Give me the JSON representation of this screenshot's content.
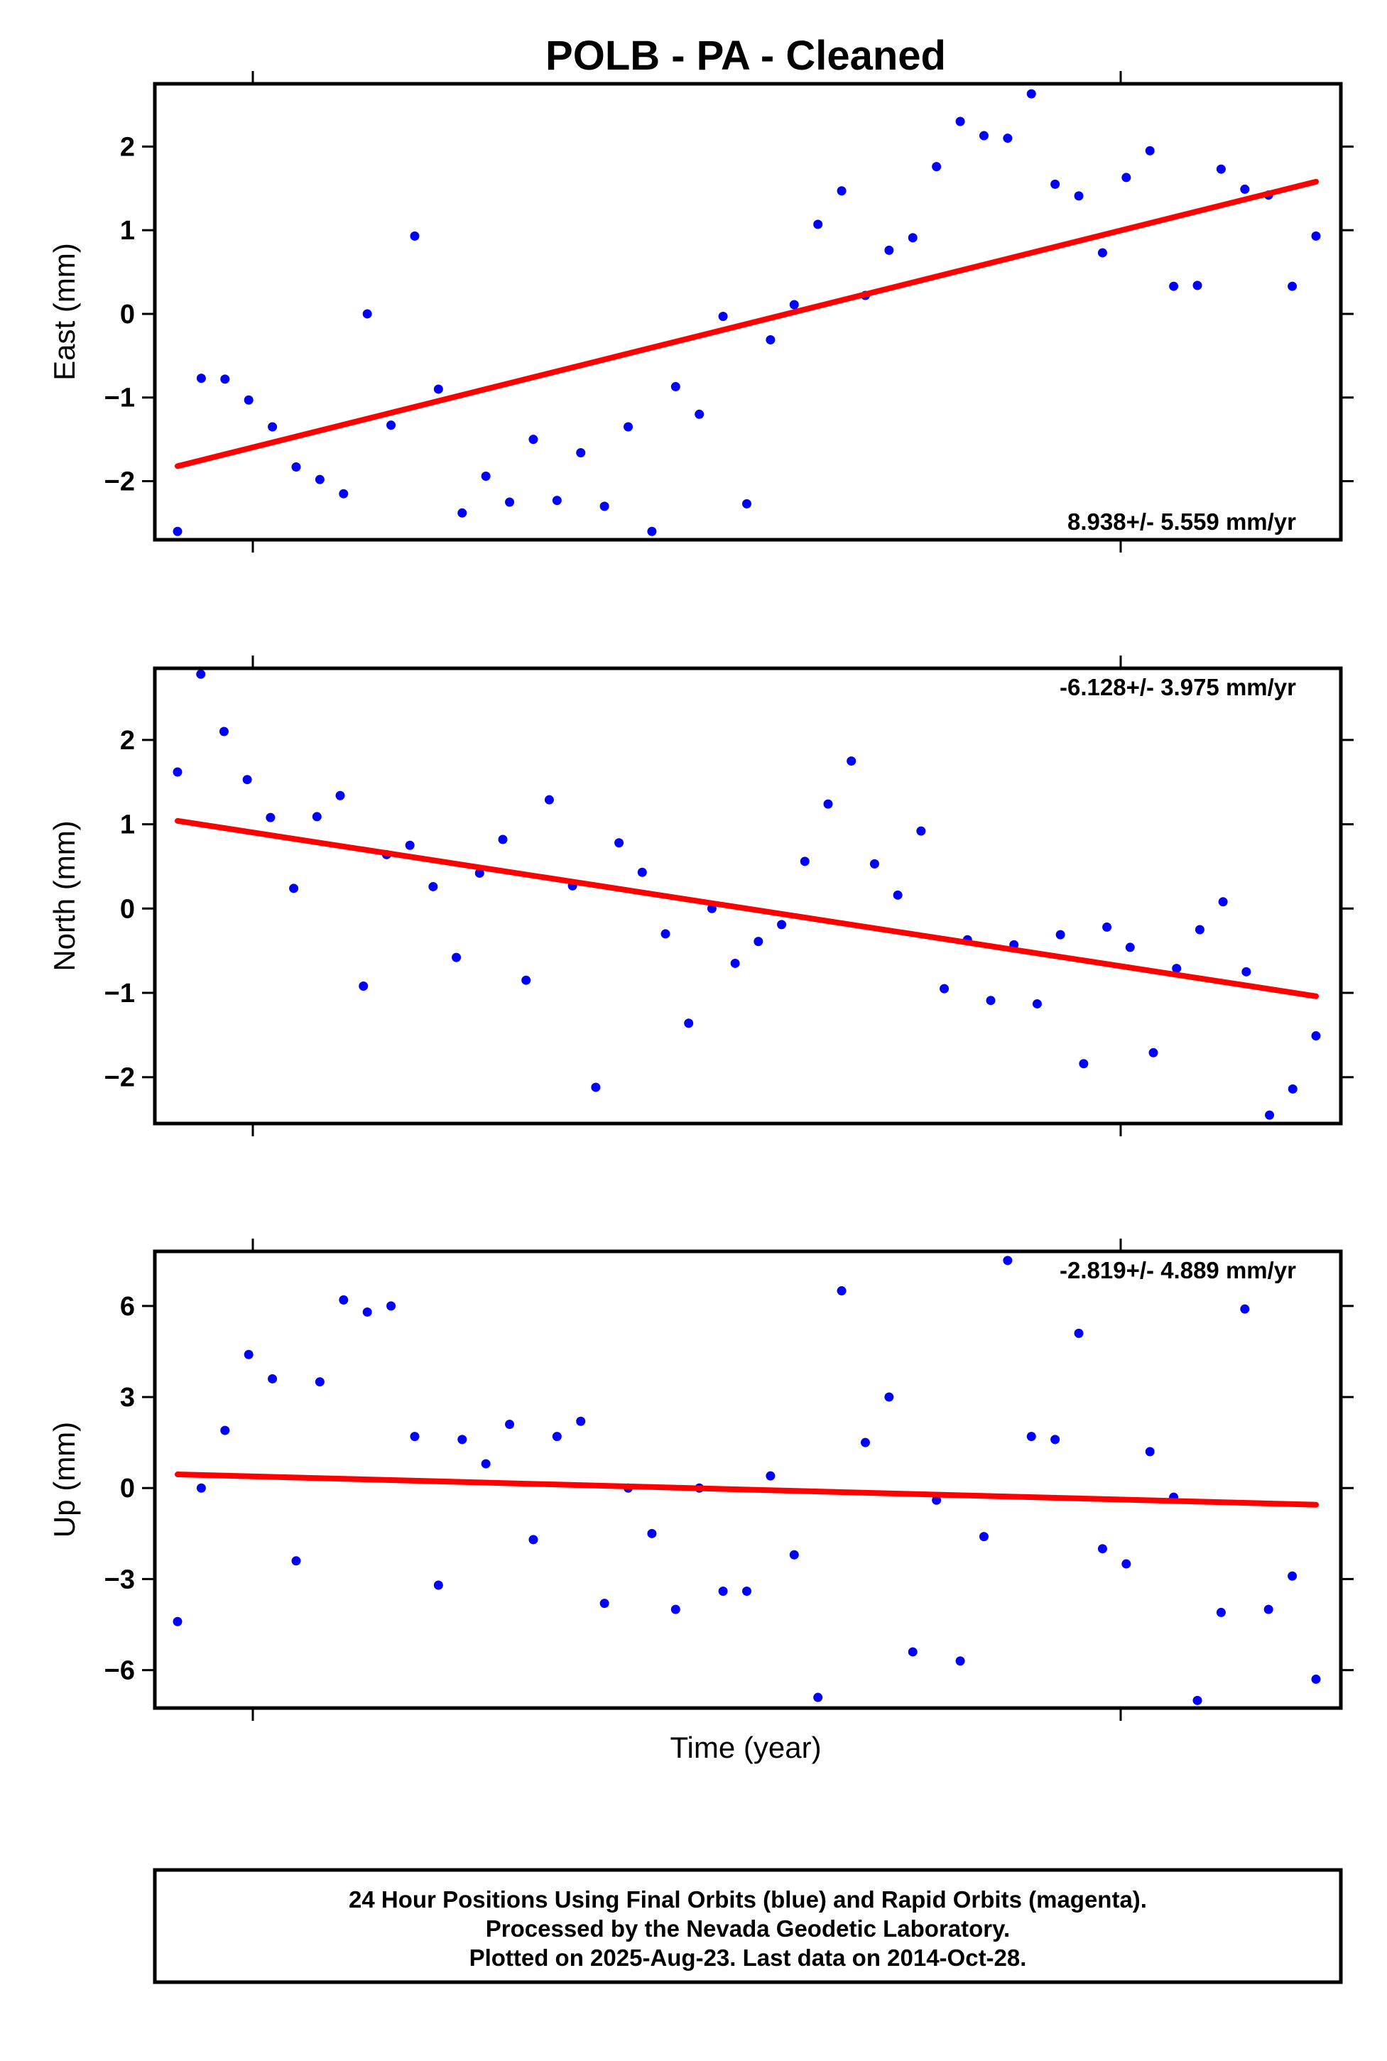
{
  "title": "POLB  - PA - Cleaned",
  "xlabel": "Time (year)",
  "footer": {
    "line1": "24 Hour Positions Using Final Orbits (blue) and Rapid Orbits (magenta).",
    "line2": "Processed by the Nevada Geodetic Laboratory.",
    "line3": "Plotted on 2025-Aug-23. Last data on 2014-Oct-28."
  },
  "colors": {
    "points": "#0000ff",
    "fit": "#ff0000",
    "frame": "#000000"
  },
  "chart_data": [
    {
      "type": "scatter",
      "ylabel": "East (mm)",
      "ylim": [
        -2.7,
        2.75
      ],
      "yticks": [
        -2,
        -1,
        0,
        1,
        2
      ],
      "ytick_labels": [
        "−2",
        "−1",
        "0",
        "1",
        "2"
      ],
      "rate_text": "8.938+/- 5.559 mm/yr",
      "rate_position": "bottom-right",
      "series": [
        {
          "values": [
            -2.6,
            -0.77,
            -0.78,
            -1.03,
            -1.35,
            -1.83,
            -1.98,
            -2.15,
            0.0,
            -1.33,
            0.93,
            -0.9,
            -2.38,
            -1.94,
            -2.25,
            -1.5,
            -2.23,
            -1.66,
            -2.3,
            -1.35,
            -2.6,
            -0.87,
            -1.2,
            -0.03,
            -2.27,
            -0.31,
            0.11,
            1.07,
            1.47,
            0.22,
            0.76,
            0.91,
            1.76,
            2.3,
            2.13,
            2.1,
            2.63,
            1.55,
            1.41,
            0.73,
            1.63,
            1.95,
            0.33,
            0.34,
            1.73,
            1.49,
            1.42,
            0.33,
            0.93
          ]
        }
      ],
      "trend": {
        "start": -1.82,
        "end": 1.58
      }
    },
    {
      "type": "scatter",
      "ylabel": "North (mm)",
      "ylim": [
        -2.55,
        2.85
      ],
      "yticks": [
        -2,
        -1,
        0,
        1,
        2
      ],
      "ytick_labels": [
        "−2",
        "−1",
        "0",
        "1",
        "2"
      ],
      "rate_text": "-6.128+/- 3.975 mm/yr",
      "rate_position": "top-right",
      "series": [
        {
          "values": [
            1.62,
            2.78,
            2.1,
            1.53,
            1.08,
            0.24,
            1.09,
            1.34,
            -0.92,
            0.64,
            0.75,
            0.26,
            -0.58,
            0.42,
            0.82,
            -0.85,
            1.29,
            0.27,
            -2.12,
            0.78,
            0.43,
            -0.3,
            -1.36,
            0.0,
            -0.65,
            -0.39,
            -0.19,
            0.56,
            1.24,
            1.75,
            0.53,
            0.16,
            0.92,
            -0.95,
            -0.37,
            -1.09,
            -0.43,
            -1.13,
            -0.31,
            -1.84,
            -0.22,
            -0.46,
            -1.71,
            -0.71,
            -0.25,
            0.08,
            -0.75,
            -2.45,
            -2.14,
            -1.51
          ]
        }
      ],
      "trend": {
        "start": 1.04,
        "end": -1.04
      }
    },
    {
      "type": "scatter",
      "ylabel": "Up (mm)",
      "ylim": [
        -7.25,
        7.8
      ],
      "yticks": [
        -6,
        -3,
        0,
        3,
        6
      ],
      "ytick_labels": [
        "−6",
        "−3",
        "0",
        "3",
        "6"
      ],
      "rate_text": "-2.819+/- 4.889 mm/yr",
      "rate_position": "top-right",
      "series": [
        {
          "values": [
            -4.4,
            0.0,
            1.9,
            4.4,
            3.6,
            -2.4,
            3.5,
            6.2,
            5.8,
            6.0,
            1.7,
            -3.2,
            1.6,
            0.8,
            2.1,
            -1.7,
            1.7,
            2.2,
            -3.8,
            0.0,
            -1.5,
            -4.0,
            0.0,
            -3.4,
            -3.4,
            0.4,
            -2.2,
            -6.9,
            6.5,
            1.5,
            3.0,
            -5.4,
            -0.4,
            -5.7,
            -1.6,
            7.5,
            1.7,
            1.6,
            5.1,
            -2.0,
            -2.5,
            1.2,
            -0.3,
            -7.0,
            -4.1,
            5.9,
            -4.0,
            -2.9,
            -6.3
          ]
        }
      ],
      "trend": {
        "start": 0.45,
        "end": -0.55
      }
    }
  ]
}
